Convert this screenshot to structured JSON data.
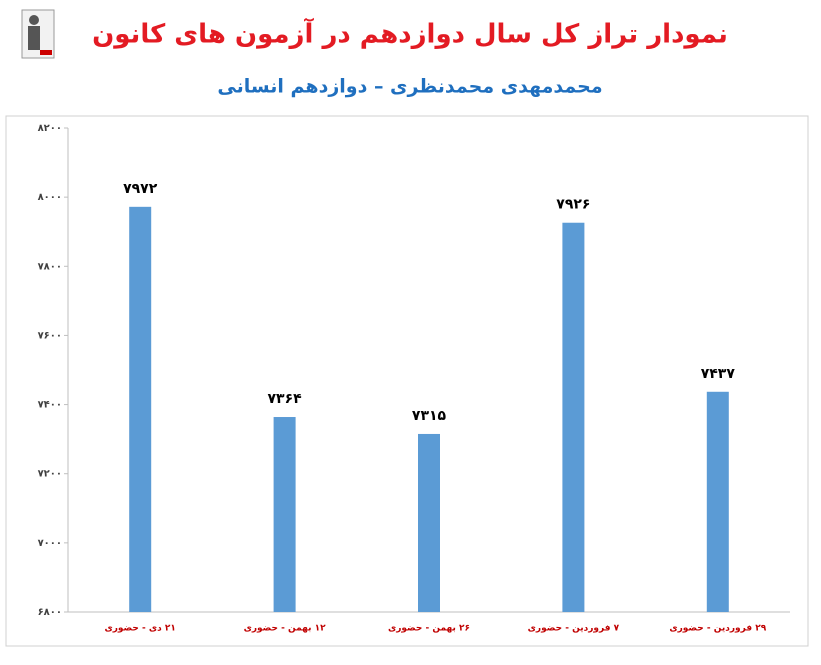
{
  "chart_data": {
    "type": "bar",
    "title": "نمودار تراز کل سال دوازدهم در آزمون های کانون",
    "subtitle": "محمدمهدی محمدنظری – دوازدهم انسانی",
    "categories": [
      "۲۱ دی - حضوری",
      "۱۲ بهمن - حضوری",
      "۲۶ بهمن - حضوری",
      "۷ فروردین - حضوری",
      "۲۹ فروردین - حضوری"
    ],
    "values": [
      7972,
      7364,
      7315,
      7926,
      7437
    ],
    "value_labels": [
      "۷۹۷۲",
      "۷۳۶۴",
      "۷۳۱۵",
      "۷۹۲۶",
      "۷۴۳۷"
    ],
    "color": "#5b9bd5",
    "ylim": [
      6800,
      8200
    ],
    "yticks": [
      {
        "value": 6800,
        "label": "۶۸۰۰"
      },
      {
        "value": 7000,
        "label": "۷۰۰۰"
      },
      {
        "value": 7200,
        "label": "۷۲۰۰"
      },
      {
        "value": 7400,
        "label": "۷۴۰۰"
      },
      {
        "value": 7600,
        "label": "۷۶۰۰"
      },
      {
        "value": 7800,
        "label": "۷۸۰۰"
      },
      {
        "value": 8000,
        "label": "۸۰۰۰"
      },
      {
        "value": 8200,
        "label": "۸۲۰۰"
      }
    ],
    "grid": false
  }
}
